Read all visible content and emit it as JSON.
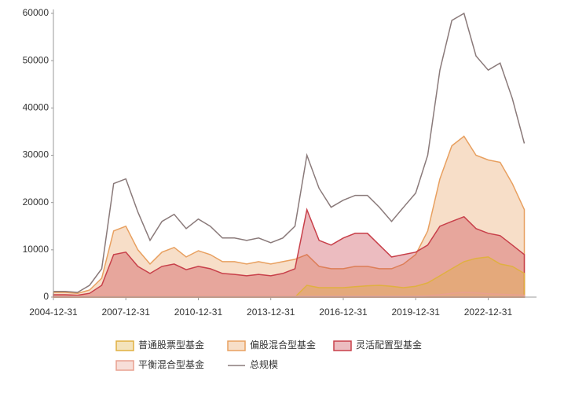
{
  "chart_data": {
    "type": "area",
    "x": [
      "2004-12-31",
      "2005-06-30",
      "2005-12-31",
      "2006-06-30",
      "2006-12-31",
      "2007-06-30",
      "2007-12-31",
      "2008-06-30",
      "2008-12-31",
      "2009-06-30",
      "2009-12-31",
      "2010-06-30",
      "2010-12-31",
      "2011-06-30",
      "2011-12-31",
      "2012-06-30",
      "2012-12-31",
      "2013-06-30",
      "2013-12-31",
      "2014-06-30",
      "2014-12-31",
      "2015-06-30",
      "2015-12-31",
      "2016-06-30",
      "2016-12-31",
      "2017-06-30",
      "2017-12-31",
      "2018-06-30",
      "2018-12-31",
      "2019-06-30",
      "2019-12-31",
      "2020-06-30",
      "2020-12-31",
      "2021-06-30",
      "2021-12-31",
      "2022-06-30",
      "2022-12-31",
      "2023-06-30",
      "2023-12-31",
      "2024-06-30"
    ],
    "series": [
      {
        "name": "偏股混合型基金",
        "color": "#e8a060",
        "values": [
          1000,
          1000,
          800,
          1500,
          4000,
          14000,
          15000,
          10000,
          7000,
          9500,
          10500,
          8500,
          9800,
          9000,
          7500,
          7500,
          7000,
          7500,
          7000,
          7500,
          8000,
          9000,
          6500,
          6000,
          6000,
          6500,
          6500,
          6000,
          6000,
          7000,
          9000,
          14000,
          25000,
          32000,
          34000,
          30000,
          29000,
          28500,
          24000,
          18500
        ]
      },
      {
        "name": "灵活配置型基金",
        "color": "#c8404a",
        "values": [
          500,
          500,
          400,
          800,
          2500,
          9000,
          9500,
          6500,
          5000,
          6500,
          7000,
          5800,
          6500,
          6000,
          5000,
          4800,
          4500,
          4800,
          4500,
          5000,
          6000,
          18500,
          12000,
          11000,
          12500,
          13500,
          13500,
          11000,
          8500,
          9000,
          9500,
          11000,
          15000,
          16000,
          17000,
          14500,
          13500,
          13000,
          11000,
          9000
        ]
      },
      {
        "name": "普通股票型基金",
        "color": "#e0b040",
        "values": [
          0,
          0,
          0,
          0,
          0,
          0,
          0,
          0,
          0,
          0,
          0,
          0,
          0,
          0,
          0,
          0,
          0,
          0,
          0,
          0,
          0,
          2500,
          2000,
          2000,
          2000,
          2200,
          2400,
          2500,
          2300,
          2000,
          2300,
          3000,
          4500,
          6000,
          7500,
          8200,
          8500,
          7000,
          6500,
          5000
        ]
      },
      {
        "name": "平衡混合型基金",
        "color": "#e8a090",
        "values": [
          200,
          200,
          200,
          200,
          200,
          200,
          200,
          200,
          200,
          200,
          200,
          200,
          200,
          200,
          200,
          200,
          200,
          200,
          200,
          200,
          200,
          200,
          200,
          200,
          200,
          200,
          200,
          200,
          200,
          200,
          200,
          300,
          500,
          800,
          1000,
          900,
          700,
          600,
          500,
          400
        ]
      },
      {
        "name": "总规模",
        "color": "#8a7a7a",
        "line": true,
        "values": [
          1200,
          1200,
          1000,
          2500,
          6000,
          24000,
          25000,
          18000,
          12000,
          16000,
          17500,
          14500,
          16500,
          15000,
          12500,
          12500,
          12000,
          12500,
          11500,
          12500,
          15000,
          30000,
          23000,
          19000,
          20500,
          21500,
          21500,
          19000,
          16000,
          19000,
          22000,
          30000,
          48000,
          58500,
          60000,
          51000,
          48000,
          49500,
          42000,
          32500
        ]
      }
    ],
    "xlim": [
      "2004-12-31",
      "2024-12-31"
    ],
    "xticks": [
      "2004-12-31",
      "2007-12-31",
      "2010-12-31",
      "2013-12-31",
      "2016-12-31",
      "2019-12-31",
      "2022-12-31"
    ],
    "ylim": [
      0,
      60000
    ],
    "yticks": [
      0,
      10000,
      20000,
      30000,
      40000,
      50000,
      60000
    ]
  }
}
